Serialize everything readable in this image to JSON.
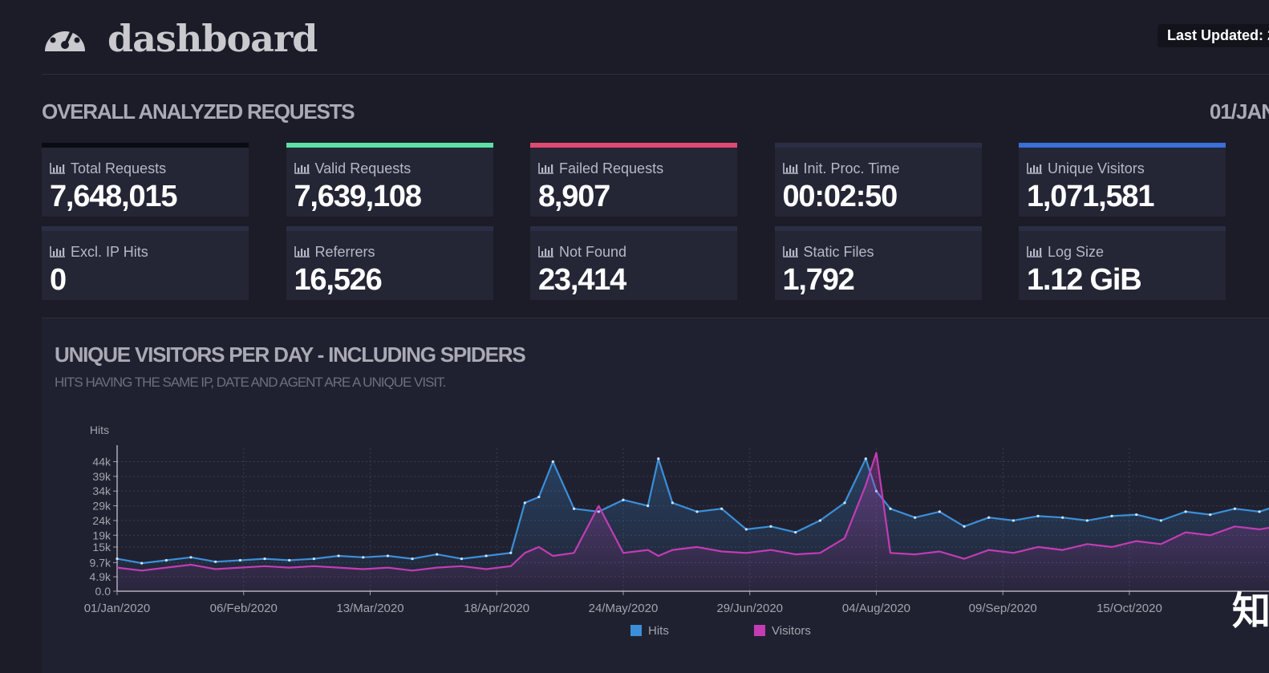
{
  "header": {
    "brand": "dashboard",
    "last_updated": "Last Updated: 2",
    "logo_icon": "speedometer-icon"
  },
  "overall": {
    "title": "OVERALL ANALYZED REQUESTS",
    "date_range": "01/JAN",
    "metrics": [
      {
        "label": "Total Requests",
        "value": "7,648,015",
        "accent": "#0a0b10"
      },
      {
        "label": "Valid Requests",
        "value": "7,639,108",
        "accent": "#5ce0a4"
      },
      {
        "label": "Failed Requests",
        "value": "8,907",
        "accent": "#e04a72"
      },
      {
        "label": "Init. Proc. Time",
        "value": "00:02:50",
        "accent": "#2a2e45"
      },
      {
        "label": "Unique Visitors",
        "value": "1,071,581",
        "accent": "#3a6fd8"
      },
      {
        "label": "Excl. IP Hits",
        "value": "0",
        "accent": "#2a2e45"
      },
      {
        "label": "Referrers",
        "value": "16,526",
        "accent": "#2a2e45"
      },
      {
        "label": "Not Found",
        "value": "23,414",
        "accent": "#2a2e45"
      },
      {
        "label": "Static Files",
        "value": "1,792",
        "accent": "#2a2e45"
      },
      {
        "label": "Log Size",
        "value": "1.12 GiB",
        "accent": "#2a2e45"
      }
    ]
  },
  "visitors_chart": {
    "title": "UNIQUE VISITORS PER DAY - INCLUDING SPIDERS",
    "subtitle": "HITS HAVING THE SAME IP, DATE AND AGENT ARE A UNIQUE VISIT."
  },
  "overlay_text": "知",
  "chart_data": {
    "type": "line",
    "ylabel": "Hits",
    "y_ticks": [
      "0.0",
      "4.9k",
      "9.7k",
      "15k",
      "19k",
      "24k",
      "29k",
      "34k",
      "39k",
      "44k"
    ],
    "x_ticks": [
      "01/Jan/2020",
      "06/Feb/2020",
      "13/Mar/2020",
      "18/Apr/2020",
      "24/May/2020",
      "29/Jun/2020",
      "04/Aug/2020",
      "09/Sep/2020",
      "15/Oct/2020"
    ],
    "ylim": [
      0,
      48500
    ],
    "xlim": [
      "2020-01-01",
      "2020-11-26"
    ],
    "grid": true,
    "legend_position": "bottom",
    "colors": {
      "hits": "#3b8fd9",
      "visitors": "#c23cb4"
    },
    "series": [
      {
        "name": "Hits",
        "x": [
          "2020-01-01",
          "2020-01-08",
          "2020-01-15",
          "2020-01-22",
          "2020-01-29",
          "2020-02-05",
          "2020-02-12",
          "2020-02-19",
          "2020-02-26",
          "2020-03-04",
          "2020-03-11",
          "2020-03-18",
          "2020-03-25",
          "2020-04-01",
          "2020-04-08",
          "2020-04-15",
          "2020-04-22",
          "2020-04-26",
          "2020-04-30",
          "2020-05-04",
          "2020-05-10",
          "2020-05-17",
          "2020-05-24",
          "2020-05-31",
          "2020-06-03",
          "2020-06-07",
          "2020-06-14",
          "2020-06-21",
          "2020-06-28",
          "2020-07-05",
          "2020-07-12",
          "2020-07-19",
          "2020-07-26",
          "2020-08-01",
          "2020-08-04",
          "2020-08-08",
          "2020-08-15",
          "2020-08-22",
          "2020-08-29",
          "2020-09-05",
          "2020-09-12",
          "2020-09-19",
          "2020-09-26",
          "2020-10-03",
          "2020-10-10",
          "2020-10-17",
          "2020-10-24",
          "2020-10-31",
          "2020-11-07",
          "2020-11-14",
          "2020-11-21",
          "2020-11-26"
        ],
        "values": [
          11000,
          9500,
          10500,
          11500,
          10000,
          10500,
          11000,
          10500,
          11000,
          12000,
          11500,
          12000,
          11000,
          12500,
          11000,
          12000,
          13000,
          30000,
          32000,
          44000,
          28000,
          27000,
          31000,
          29000,
          45000,
          30000,
          27000,
          28000,
          21000,
          22000,
          20000,
          24000,
          30000,
          45000,
          34000,
          28000,
          25000,
          27000,
          22000,
          25000,
          24000,
          25500,
          25000,
          24000,
          25500,
          26000,
          24000,
          27000,
          26000,
          28000,
          27000,
          29000
        ]
      },
      {
        "name": "Visitors",
        "x": [
          "2020-01-01",
          "2020-01-08",
          "2020-01-15",
          "2020-01-22",
          "2020-01-29",
          "2020-02-05",
          "2020-02-12",
          "2020-02-19",
          "2020-02-26",
          "2020-03-04",
          "2020-03-11",
          "2020-03-18",
          "2020-03-25",
          "2020-04-01",
          "2020-04-08",
          "2020-04-15",
          "2020-04-22",
          "2020-04-26",
          "2020-04-30",
          "2020-05-04",
          "2020-05-10",
          "2020-05-17",
          "2020-05-24",
          "2020-05-31",
          "2020-06-03",
          "2020-06-07",
          "2020-06-14",
          "2020-06-21",
          "2020-06-28",
          "2020-07-05",
          "2020-07-12",
          "2020-07-19",
          "2020-07-26",
          "2020-08-01",
          "2020-08-04",
          "2020-08-08",
          "2020-08-15",
          "2020-08-22",
          "2020-08-29",
          "2020-09-05",
          "2020-09-12",
          "2020-09-19",
          "2020-09-26",
          "2020-10-03",
          "2020-10-10",
          "2020-10-17",
          "2020-10-24",
          "2020-10-31",
          "2020-11-07",
          "2020-11-14",
          "2020-11-21",
          "2020-11-26"
        ],
        "values": [
          8000,
          7000,
          8000,
          9000,
          7500,
          8000,
          8500,
          8000,
          8500,
          8000,
          7500,
          8000,
          7000,
          8000,
          8500,
          7500,
          8500,
          13000,
          15000,
          12000,
          13000,
          29000,
          13000,
          14000,
          12000,
          14000,
          15000,
          13500,
          13000,
          14000,
          12500,
          13000,
          18000,
          36000,
          47000,
          13000,
          12500,
          13500,
          11000,
          14000,
          13000,
          15000,
          14000,
          16000,
          15000,
          17000,
          16000,
          20000,
          19000,
          22000,
          21000,
          22000
        ]
      }
    ]
  }
}
